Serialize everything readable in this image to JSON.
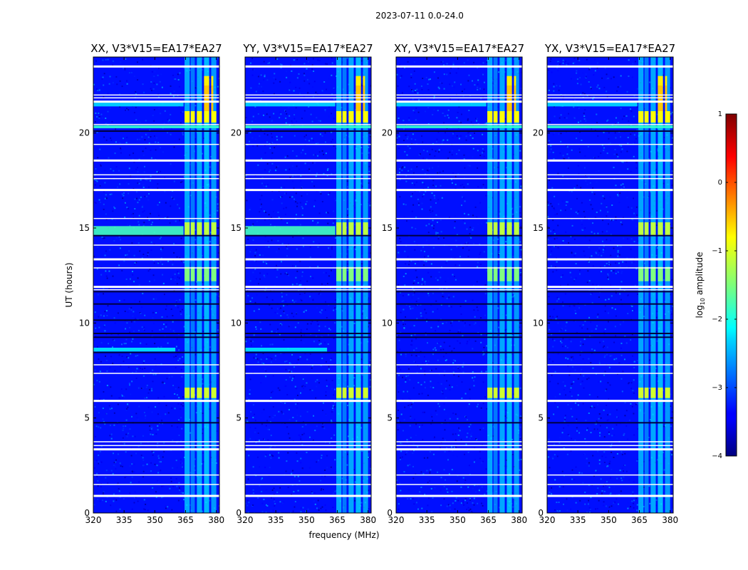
{
  "suptitle": "2023-07-11 0.0-24.0",
  "chart_data": {
    "type": "heatmap",
    "xlabel": "frequency (MHz)",
    "ylabel": "UT (hours)",
    "xlim": [
      320,
      381.5
    ],
    "ylim": [
      0,
      24
    ],
    "x_ticks": [
      320,
      335,
      350,
      365,
      380
    ],
    "y_ticks": [
      0,
      5,
      10,
      15,
      20
    ],
    "panels": [
      {
        "title": "XX, V3*V15=EA17*EA27",
        "polarization": "XX"
      },
      {
        "title": "YY, V3*V15=EA17*EA27",
        "polarization": "YY"
      },
      {
        "title": "XY, V3*V15=EA17*EA27",
        "polarization": "XY"
      },
      {
        "title": "YX, V3*V15=EA17*EA27",
        "polarization": "YX"
      }
    ],
    "colorbar": {
      "label": "log10 amplitude",
      "label_main": "log",
      "label_sub": "10",
      "label_rest": " amplitude",
      "range": [
        -4,
        1
      ],
      "ticks": [
        -4,
        -3,
        -2,
        -1,
        0,
        1
      ],
      "tick_labels": [
        "−4",
        "−3",
        "−2",
        "−1",
        "0",
        "1"
      ],
      "colormap": "jet"
    },
    "background_level": -3.3,
    "flagged_rows_hours": [
      0.9,
      1.5,
      2.0,
      3.35,
      3.55,
      3.75,
      5.9,
      7.35,
      7.8,
      11.9,
      11.75,
      12.9,
      13.35,
      14.1,
      15.5,
      17.0,
      17.6,
      17.8,
      18.55,
      19.4,
      20.45,
      21.65,
      21.85,
      22.0,
      23.5
    ],
    "dark_rows_hours": [
      4.75,
      8.45,
      9.25,
      9.45,
      10.15,
      11.0,
      11.65,
      14.6,
      20.1
    ],
    "vertical_stripes_mhz": [
      {
        "from": 364.5,
        "to": 367.0,
        "level": -2.3
      },
      {
        "from": 367.5,
        "to": 369.5,
        "level": -2.6
      },
      {
        "from": 370.5,
        "to": 373.0,
        "level": -2.3
      },
      {
        "from": 374.0,
        "to": 376.5,
        "level": -2.2
      },
      {
        "from": 377.5,
        "to": 380.0,
        "level": -2.4
      }
    ],
    "bright_events": [
      {
        "t_from": 12.2,
        "t_to": 12.95,
        "f_from": 364.0,
        "f_to": 380.0,
        "level": -1.5
      },
      {
        "t_from": 14.6,
        "t_to": 15.3,
        "f_from": 364.0,
        "f_to": 380.0,
        "level": -1.2
      },
      {
        "t_from": 6.05,
        "t_to": 6.6,
        "f_from": 364.0,
        "f_to": 380.0,
        "level": -1.1
      },
      {
        "t_from": 20.55,
        "t_to": 21.15,
        "f_from": 363.0,
        "f_to": 380.0,
        "level": -0.9
      },
      {
        "t_from": 21.15,
        "t_to": 22.5,
        "f_from": 373.0,
        "f_to": 378.5,
        "level": -0.6
      },
      {
        "t_from": 22.5,
        "t_to": 23.0,
        "f_from": 374.0,
        "f_to": 378.5,
        "level": -0.8
      }
    ],
    "wideband_rows": [
      {
        "t_from": 14.6,
        "t_to": 15.1,
        "f_from": 320,
        "f_to": 364,
        "level": -1.8,
        "panels": [
          "XX",
          "YY"
        ]
      },
      {
        "t_from": 8.5,
        "t_to": 8.7,
        "f_from": 320,
        "f_to": 360,
        "level": -2.2,
        "panels": [
          "XX",
          "YY"
        ]
      },
      {
        "t_from": 21.4,
        "t_to": 21.6,
        "f_from": 320,
        "f_to": 364,
        "level": -2.3,
        "panels": [
          "XX",
          "YY",
          "XY",
          "YX"
        ]
      },
      {
        "t_from": 20.25,
        "t_to": 20.4,
        "f_from": 320,
        "f_to": 381.5,
        "level": -1.9,
        "panels": [
          "XX",
          "YY",
          "XY",
          "YX"
        ]
      }
    ]
  }
}
